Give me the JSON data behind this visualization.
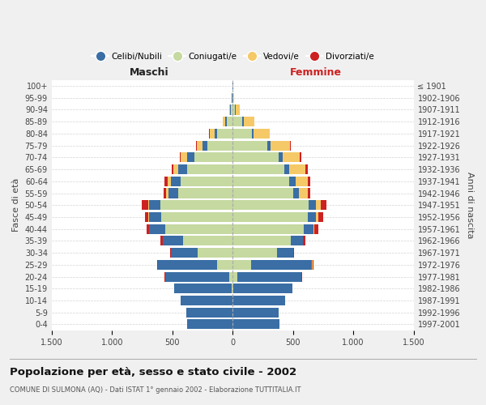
{
  "age_groups": [
    "0-4",
    "5-9",
    "10-14",
    "15-19",
    "20-24",
    "25-29",
    "30-34",
    "35-39",
    "40-44",
    "45-49",
    "50-54",
    "55-59",
    "60-64",
    "65-69",
    "70-74",
    "75-79",
    "80-84",
    "85-89",
    "90-94",
    "95-99",
    "100+"
  ],
  "birth_years": [
    "1997-2001",
    "1992-1996",
    "1987-1991",
    "1982-1986",
    "1977-1981",
    "1972-1976",
    "1967-1971",
    "1962-1966",
    "1957-1961",
    "1952-1956",
    "1947-1951",
    "1942-1946",
    "1937-1941",
    "1932-1936",
    "1927-1931",
    "1922-1926",
    "1917-1921",
    "1912-1916",
    "1907-1911",
    "1902-1906",
    "≤ 1901"
  ],
  "males": {
    "celibe": [
      380,
      380,
      430,
      480,
      530,
      490,
      220,
      170,
      130,
      100,
      90,
      80,
      80,
      70,
      60,
      40,
      20,
      10,
      5,
      3,
      2
    ],
    "coniugato": [
      0,
      1,
      2,
      5,
      30,
      130,
      290,
      410,
      560,
      590,
      600,
      450,
      430,
      380,
      320,
      210,
      130,
      50,
      15,
      3,
      1
    ],
    "vedovo": [
      0,
      0,
      0,
      0,
      0,
      0,
      1,
      2,
      5,
      8,
      10,
      20,
      30,
      40,
      50,
      50,
      40,
      20,
      5,
      0,
      0
    ],
    "divorziato": [
      0,
      0,
      0,
      1,
      2,
      5,
      10,
      15,
      20,
      30,
      50,
      20,
      25,
      15,
      10,
      5,
      3,
      2,
      1,
      0,
      0
    ]
  },
  "females": {
    "nubile": [
      390,
      380,
      430,
      490,
      530,
      510,
      130,
      100,
      80,
      70,
      60,
      50,
      50,
      40,
      35,
      25,
      15,
      10,
      8,
      3,
      2
    ],
    "coniugata": [
      0,
      0,
      2,
      5,
      40,
      150,
      370,
      480,
      590,
      620,
      630,
      500,
      470,
      430,
      380,
      290,
      160,
      80,
      20,
      4,
      1
    ],
    "vedova": [
      0,
      0,
      0,
      0,
      2,
      5,
      2,
      5,
      10,
      20,
      40,
      70,
      100,
      130,
      140,
      160,
      130,
      90,
      30,
      2,
      0
    ],
    "divorziata": [
      0,
      0,
      0,
      1,
      2,
      5,
      10,
      20,
      30,
      40,
      50,
      25,
      25,
      20,
      15,
      10,
      5,
      3,
      1,
      0,
      0
    ]
  },
  "color_celibe": "#3a6ea5",
  "color_coniugato": "#c5d9a0",
  "color_vedovo": "#f5c967",
  "color_divorziato": "#cc2222",
  "title": "Popolazione per età, sesso e stato civile - 2002",
  "subtitle": "COMUNE DI SULMONA (AQ) - Dati ISTAT 1° gennaio 2002 - Elaborazione TUTTITALIA.IT",
  "xlabel_left": "Maschi",
  "xlabel_right": "Femmine",
  "ylabel_left": "Fasce di età",
  "ylabel_right": "Anni di nascita",
  "xlim": 1500,
  "bg_color": "#f0f0f0",
  "plot_bg": "#ffffff"
}
